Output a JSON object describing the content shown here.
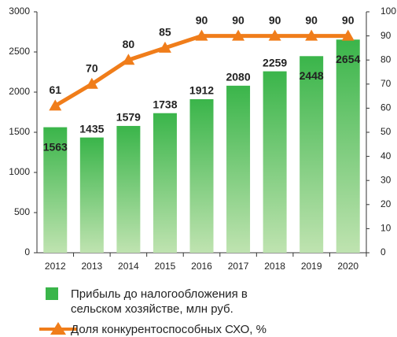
{
  "chart_data": {
    "type": "bar",
    "categories": [
      "2012",
      "2013",
      "2014",
      "2015",
      "2016",
      "2017",
      "2018",
      "2019",
      "2020"
    ],
    "series": [
      {
        "name": "Прибыль до налогообложения в сельском хозяйстве, млн руб.",
        "type": "bar",
        "color": "#3ab54a",
        "values": [
          1563,
          1435,
          1579,
          1738,
          1912,
          2080,
          2259,
          2448,
          2654
        ]
      },
      {
        "name": "Доля конкурентоспособных СХО, %",
        "type": "line",
        "axis": "y2",
        "color": "#f07d1a",
        "values": [
          61,
          70,
          80,
          85,
          90,
          90,
          90,
          90,
          90
        ]
      }
    ],
    "ylim": [
      0,
      3000
    ],
    "yticks": [
      0,
      500,
      1000,
      1500,
      2000,
      2500,
      3000
    ],
    "y2lim": [
      0,
      100
    ],
    "y2ticks": [
      0,
      10,
      20,
      30,
      40,
      50,
      60,
      70,
      80,
      90,
      100
    ]
  }
}
